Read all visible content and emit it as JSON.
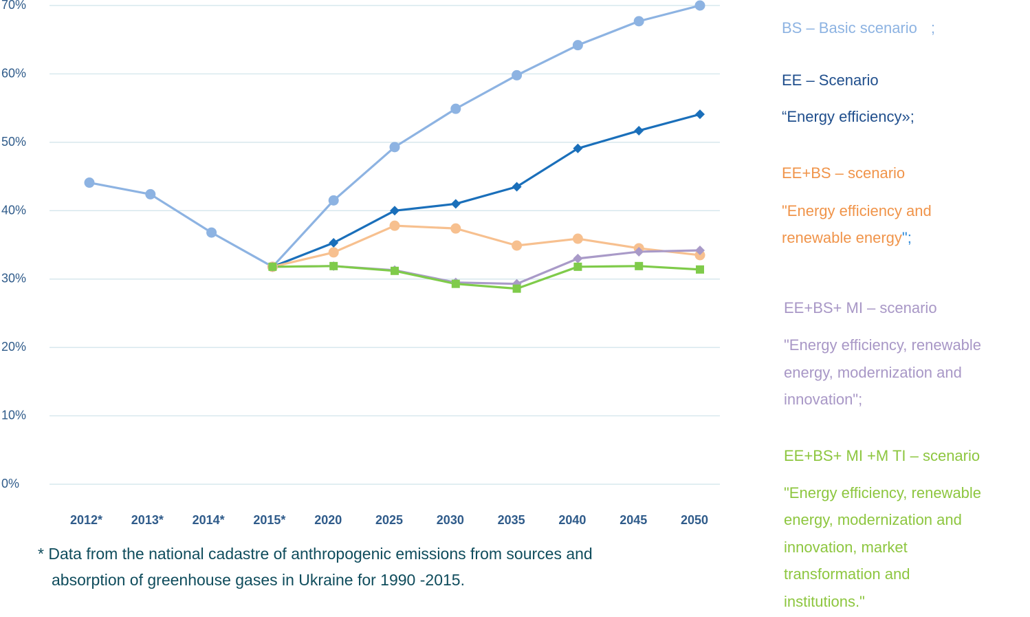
{
  "colors": {
    "bs": "#8db3e2",
    "ee": "#1a6fba",
    "ee_bs": "#f7c08f",
    "ee_bs_mi": "#a99ac8",
    "ee_bs_mi_mti": "#7fcb4a",
    "grid": "#cfe3ea",
    "axis_text": "#2f5b8a"
  },
  "chart_data": {
    "type": "line",
    "title": "",
    "xlabel": "",
    "ylabel": "",
    "ylim": [
      0,
      70
    ],
    "categories": [
      "2012*",
      "2013*",
      "2014*",
      "2015*",
      "2020",
      "2025",
      "2030",
      "2035",
      "2040",
      "2045",
      "2050"
    ],
    "y_ticks": [
      {
        "value": 0,
        "label": "0%"
      },
      {
        "value": 10,
        "label": "10%"
      },
      {
        "value": 20,
        "label": "20%"
      },
      {
        "value": 30,
        "label": "30%"
      },
      {
        "value": 40,
        "label": "40%"
      },
      {
        "value": 50,
        "label": "50%"
      },
      {
        "value": 60,
        "label": "60%"
      },
      {
        "value": 70,
        "label": "70%"
      }
    ],
    "grid": true,
    "legend_position": "right",
    "series": [
      {
        "key": "bs",
        "marker": "circle",
        "values": [
          44.1,
          42.4,
          36.8,
          31.8,
          41.5,
          49.3,
          54.9,
          59.8,
          64.2,
          67.7,
          70.0
        ]
      },
      {
        "key": "ee",
        "marker": "diamond",
        "values": [
          null,
          null,
          null,
          31.8,
          35.3,
          40.0,
          41.0,
          43.5,
          49.1,
          51.7,
          54.1
        ]
      },
      {
        "key": "ee_bs",
        "marker": "circle",
        "values": [
          null,
          null,
          null,
          31.8,
          33.9,
          37.8,
          37.4,
          34.9,
          35.9,
          34.5,
          33.5
        ]
      },
      {
        "key": "ee_bs_mi",
        "marker": "diamond",
        "values": [
          null,
          null,
          null,
          31.8,
          31.9,
          31.3,
          29.5,
          29.3,
          33.0,
          34.0,
          34.2
        ]
      },
      {
        "key": "ee_bs_mi_mti",
        "marker": "square",
        "values": [
          null,
          null,
          null,
          31.8,
          31.9,
          31.2,
          29.3,
          28.6,
          31.8,
          31.9,
          31.4
        ]
      }
    ]
  },
  "legend": {
    "bs_line": "BS  – Basic scenario",
    "bs_semicolon": ";",
    "ee_line1": "EE – Scenario",
    "ee_line2": "“Energy efficiency»;",
    "ebs_line1": "EE+BS – scenario",
    "ebs_line2": "\"Energy efficiency and",
    "ebs_line3": "renewable energy",
    "ebs_tail": "\";",
    "mi_line1": "EE+BS+ MI – scenario",
    "mi_line2": "\"Energy efficiency, renewable",
    "mi_line3": "energy, modernization and",
    "mi_line4": "innovation\";",
    "mti_line1": "EE+BS+ MI +M TI – scenario",
    "mti_line2": "\"Energy efficiency, renewable",
    "mti_line3": "energy, modernization and",
    "mti_line4": "innovation, market",
    "mti_line5": "transformation and",
    "mti_line6": "institutions.\""
  },
  "footnote": {
    "line1": "* Data from the national cadastre of anthropogenic emissions from sources and",
    "line2": "absorption of greenhouse gases in Ukraine for 1990   -2015."
  }
}
